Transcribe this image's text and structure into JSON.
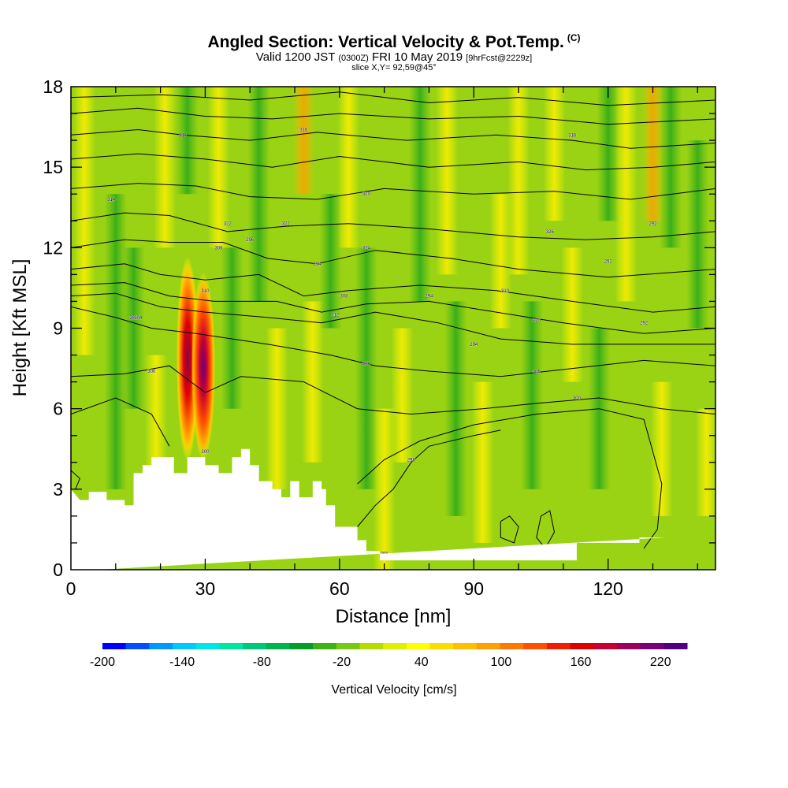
{
  "title": {
    "main": "Angled Section: Vertical Velocity & Pot.Temp.",
    "mark": "(C)",
    "valid_a": "Valid 1200 JST",
    "valid_b": "(0300Z)",
    "valid_c": "FRI 10 May 2019",
    "valid_d": "[9hrFcst@2229z]",
    "slice": "slice X,Y= 92,59@45°"
  },
  "chart_data": {
    "type": "heatmap",
    "xlabel": "Distance [nm]",
    "ylabel": "Height [Kft MSL]",
    "xlim": [
      0,
      144
    ],
    "ylim": [
      0,
      18
    ],
    "x_ticks": [
      0,
      30,
      60,
      90,
      120
    ],
    "y_ticks": [
      0,
      3,
      6,
      9,
      12,
      15,
      18
    ],
    "colorbar": {
      "label": "Vertical Velocity [cm/s]",
      "min": -200,
      "max": 240,
      "tick_labels": [
        "-200",
        "-140",
        "-80",
        "-20",
        "40",
        "100",
        "160",
        "220"
      ],
      "tick_values": [
        -200,
        -140,
        -80,
        -20,
        40,
        100,
        160,
        220
      ],
      "colors": [
        "#0000ff",
        "#0050ff",
        "#0096ff",
        "#00c8ff",
        "#00e6e6",
        "#00e6a0",
        "#00c878",
        "#00b450",
        "#00a028",
        "#3cb414",
        "#78c814",
        "#b4dc00",
        "#dcf000",
        "#ffff00",
        "#ffdc00",
        "#ffbe00",
        "#ffa000",
        "#ff7800",
        "#ff5000",
        "#f01e00",
        "#dc0000",
        "#c80032",
        "#a0005a",
        "#780078",
        "#500080"
      ]
    },
    "terrain_profile": {
      "x": [
        0,
        2,
        4,
        4,
        8,
        8,
        12,
        12,
        14,
        14,
        16,
        16,
        18,
        18,
        23,
        23,
        26,
        26,
        30,
        30,
        33,
        33,
        36,
        36,
        38,
        38,
        40,
        40,
        42,
        42,
        45,
        45,
        47,
        47,
        49,
        49,
        51,
        51,
        54,
        54,
        56,
        56,
        57,
        57,
        59,
        59,
        64,
        64,
        66,
        66,
        69,
        69,
        72,
        72,
        100,
        100,
        113,
        113,
        127,
        127,
        133,
        133,
        144
      ],
      "y": [
        3.0,
        2.6,
        2.6,
        2.9,
        2.9,
        2.6,
        2.6,
        2.4,
        2.4,
        3.6,
        3.6,
        3.9,
        3.9,
        4.2,
        4.2,
        3.6,
        3.6,
        4.2,
        4.2,
        3.9,
        3.9,
        3.6,
        3.6,
        4.2,
        4.2,
        4.5,
        4.5,
        3.9,
        3.9,
        3.3,
        3.3,
        3.0,
        3.0,
        2.7,
        2.7,
        3.3,
        3.3,
        2.7,
        2.7,
        3.3,
        3.3,
        3.0,
        3.0,
        2.4,
        2.4,
        1.6,
        1.6,
        1.1,
        1.1,
        0.7,
        0.7,
        0.35,
        0.35,
        0.35,
        0.35,
        0.35,
        0.35,
        1.0,
        1.0,
        1.2,
        1.2
      ]
    },
    "updraft_cores": [
      {
        "x": 26,
        "y_range": [
          3.8,
          11.6
        ],
        "peak_cm_s": 200
      },
      {
        "x": 29.5,
        "y_range": [
          4.2,
          11.0
        ],
        "peak_cm_s": 230
      }
    ],
    "contour_labels": [
      "314",
      "316",
      "316",
      "314",
      "320",
      "322",
      "322",
      "324",
      "326",
      "306",
      "308",
      "310",
      "310",
      "312",
      "310",
      "308",
      "304",
      "306",
      "300",
      "300",
      "298",
      "298",
      "304",
      "300",
      "296",
      "294",
      "294",
      "292",
      "294",
      "292",
      "292"
    ]
  }
}
